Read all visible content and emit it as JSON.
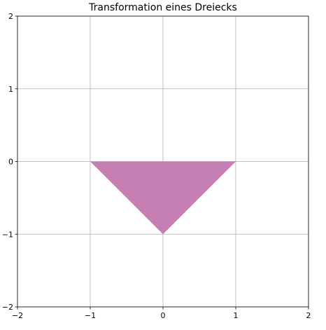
{
  "chart_data": {
    "type": "area",
    "title": "Transformation eines Dreiecks",
    "xlabel": "",
    "ylabel": "",
    "xlim": [
      -2,
      2
    ],
    "ylim": [
      -2,
      2
    ],
    "x_ticks": [
      -2,
      -1,
      0,
      1,
      2
    ],
    "y_ticks": [
      -2,
      -1,
      0,
      1,
      2
    ],
    "x_tick_labels": [
      "−2",
      "−1",
      "0",
      "1",
      "2"
    ],
    "y_tick_labels": [
      "−2",
      "−1",
      "0",
      "1",
      "2"
    ],
    "grid": true,
    "series": [
      {
        "type": "polygon",
        "color": "#c67fb3",
        "points": [
          [
            -1,
            0
          ],
          [
            1,
            0
          ],
          [
            0,
            -1
          ]
        ]
      }
    ]
  }
}
